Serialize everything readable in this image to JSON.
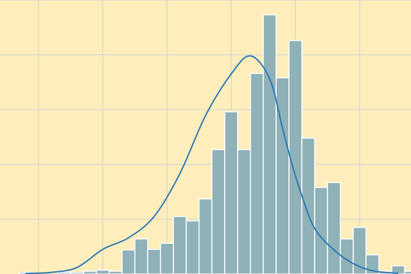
{
  "chart_data": {
    "type": "bar",
    "title": "",
    "xlabel": "",
    "ylabel": "",
    "grid": true,
    "legend": "none",
    "colors": {
      "background": "#ffeebb",
      "grid": "#c8cfd8",
      "bar_fill": "#8fb1b8",
      "bar_edge": "#ffffff",
      "kde_line": "#2a78b5"
    },
    "x_range": [
      -0.6,
      5.8
    ],
    "ylim": [
      0,
      0.5
    ],
    "bins": {
      "start": -0.3,
      "width": 0.2,
      "counts": [
        0.003,
        0.0,
        0.0,
        0.003,
        0.003,
        0.005,
        0.007,
        0.005,
        0.044,
        0.064,
        0.045,
        0.056,
        0.105,
        0.097,
        0.137,
        0.227,
        0.296,
        0.227,
        0.366,
        0.473,
        0.358,
        0.426,
        0.248,
        0.158,
        0.167,
        0.064,
        0.085,
        0.035,
        0.005,
        0.015,
        0.005
      ]
    },
    "kde": {
      "x": [
        -0.2,
        0.2,
        0.6,
        1.0,
        1.4,
        1.8,
        2.2,
        2.6,
        3.0,
        3.3,
        3.6,
        3.8,
        3.95,
        4.1,
        4.3,
        4.6,
        4.9,
        5.2,
        5.6
      ],
      "y": [
        0.001,
        0.003,
        0.012,
        0.045,
        0.066,
        0.105,
        0.183,
        0.289,
        0.365,
        0.398,
        0.356,
        0.266,
        0.199,
        0.143,
        0.083,
        0.044,
        0.019,
        0.006,
        0.001
      ]
    }
  }
}
